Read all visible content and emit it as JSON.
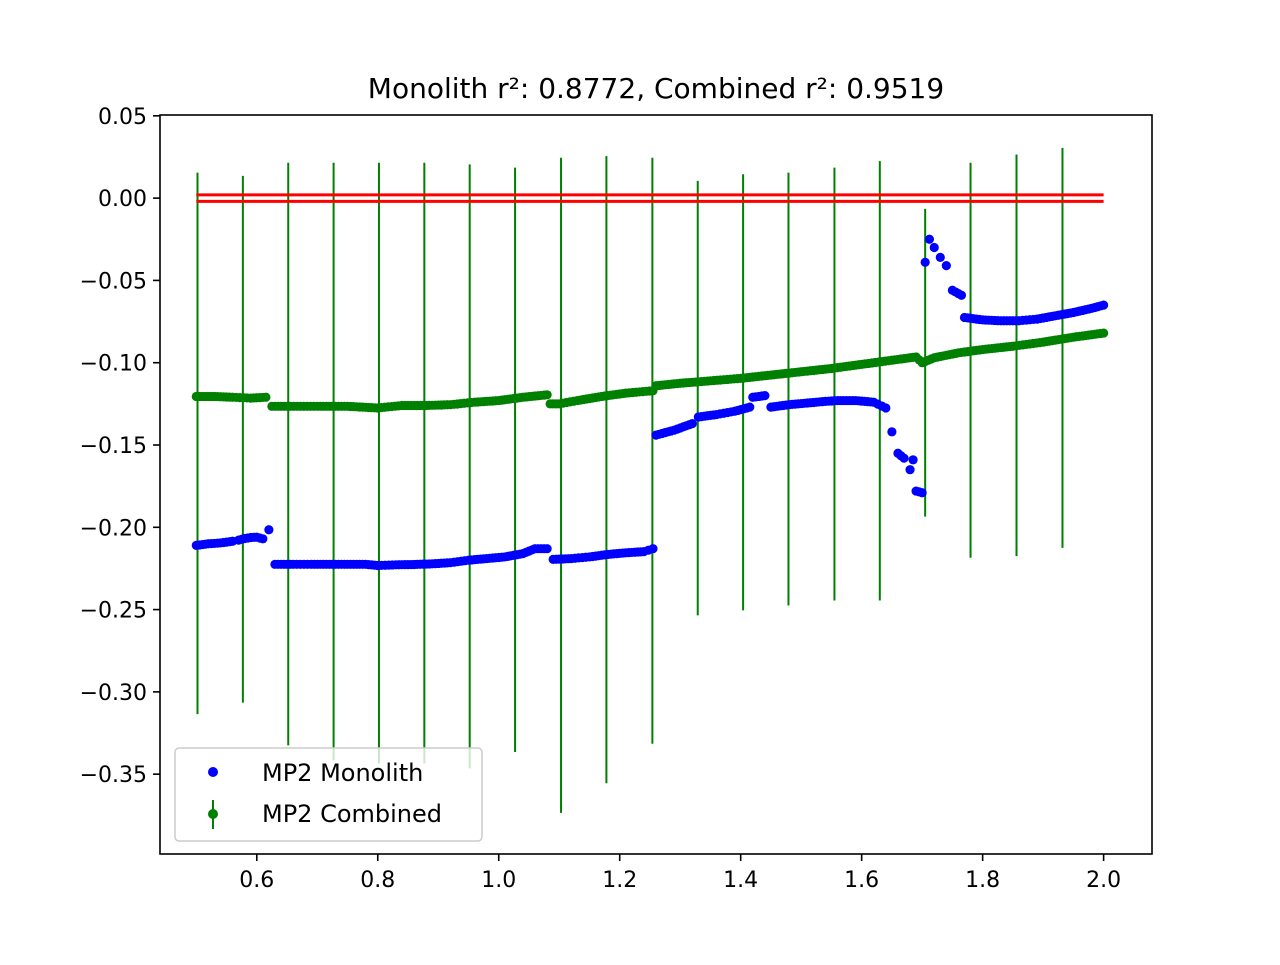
{
  "chart_data": {
    "type": "scatter",
    "title": "Monolith r²: 0.8772, Combined r²: 0.9519",
    "xlabel": "",
    "ylabel": "",
    "xlim": [
      0.44,
      2.08
    ],
    "ylim": [
      -0.3985,
      0.0505
    ],
    "x_ticks": [
      0.6,
      0.8,
      1.0,
      1.2,
      1.4,
      1.6,
      1.8,
      2.0
    ],
    "x_tick_labels": [
      "0.6",
      "0.8",
      "1.0",
      "1.2",
      "1.4",
      "1.6",
      "1.8",
      "2.0"
    ],
    "y_ticks": [
      0.05,
      0.0,
      -0.05,
      -0.1,
      -0.15,
      -0.2,
      -0.25,
      -0.3,
      -0.35
    ],
    "y_tick_labels": [
      "0.05",
      "0.00",
      "−0.05",
      "−0.10",
      "−0.15",
      "−0.20",
      "−0.25",
      "−0.30",
      "−0.35"
    ],
    "grid": false,
    "legend_position": "lower-left",
    "colors": {
      "monolith": "#0000ff",
      "combined": "#008000",
      "reference": "#ff0000"
    },
    "series": [
      {
        "name": "MP2 Monolith",
        "kind": "markers",
        "color": "#0000ff",
        "points": [
          [
            0.5,
            -0.211
          ],
          [
            0.51,
            -0.2105
          ],
          [
            0.52,
            -0.21
          ],
          [
            0.53,
            -0.2098
          ],
          [
            0.54,
            -0.2095
          ],
          [
            0.55,
            -0.209
          ],
          [
            0.56,
            -0.2085
          ],
          [
            0.57,
            -0.2078
          ],
          [
            0.58,
            -0.2068
          ],
          [
            0.59,
            -0.2062
          ],
          [
            0.6,
            -0.206
          ],
          [
            0.61,
            -0.207
          ],
          [
            0.62,
            -0.2015
          ],
          [
            0.63,
            -0.2225
          ],
          [
            0.66,
            -0.2225
          ],
          [
            0.69,
            -0.2225
          ],
          [
            0.72,
            -0.2225
          ],
          [
            0.75,
            -0.2225
          ],
          [
            0.78,
            -0.2225
          ],
          [
            0.8,
            -0.2232
          ],
          [
            0.83,
            -0.2228
          ],
          [
            0.86,
            -0.2226
          ],
          [
            0.89,
            -0.2222
          ],
          [
            0.92,
            -0.2215
          ],
          [
            0.95,
            -0.22
          ],
          [
            0.98,
            -0.219
          ],
          [
            1.01,
            -0.218
          ],
          [
            1.04,
            -0.216
          ],
          [
            1.06,
            -0.213
          ],
          [
            1.08,
            -0.213
          ],
          [
            1.09,
            -0.2195
          ],
          [
            1.12,
            -0.219
          ],
          [
            1.15,
            -0.218
          ],
          [
            1.18,
            -0.2165
          ],
          [
            1.21,
            -0.2155
          ],
          [
            1.24,
            -0.2148
          ],
          [
            1.255,
            -0.213
          ],
          [
            1.26,
            -0.144
          ],
          [
            1.29,
            -0.141
          ],
          [
            1.32,
            -0.137
          ],
          [
            1.33,
            -0.133
          ],
          [
            1.36,
            -0.1315
          ],
          [
            1.39,
            -0.1295
          ],
          [
            1.415,
            -0.127
          ],
          [
            1.42,
            -0.121
          ],
          [
            1.44,
            -0.12
          ],
          [
            1.45,
            -0.127
          ],
          [
            1.48,
            -0.1255
          ],
          [
            1.51,
            -0.1245
          ],
          [
            1.54,
            -0.1235
          ],
          [
            1.56,
            -0.123
          ],
          [
            1.59,
            -0.123
          ],
          [
            1.62,
            -0.124
          ],
          [
            1.64,
            -0.1275
          ],
          [
            1.65,
            -0.142
          ],
          [
            1.66,
            -0.155
          ],
          [
            1.67,
            -0.158
          ],
          [
            1.68,
            -0.165
          ],
          [
            1.685,
            -0.159
          ],
          [
            1.69,
            -0.178
          ],
          [
            1.7,
            -0.179
          ],
          [
            1.705,
            -0.039
          ],
          [
            1.712,
            -0.025
          ],
          [
            1.72,
            -0.03
          ],
          [
            1.73,
            -0.036
          ],
          [
            1.74,
            -0.041
          ],
          [
            1.75,
            -0.056
          ],
          [
            1.76,
            -0.058
          ],
          [
            1.765,
            -0.059
          ],
          [
            1.77,
            -0.0725
          ],
          [
            1.8,
            -0.074
          ],
          [
            1.83,
            -0.0745
          ],
          [
            1.86,
            -0.0745
          ],
          [
            1.89,
            -0.0735
          ],
          [
            1.92,
            -0.0715
          ],
          [
            1.95,
            -0.0695
          ],
          [
            1.98,
            -0.067
          ],
          [
            2.0,
            -0.065
          ]
        ]
      },
      {
        "name": "MP2 Combined",
        "kind": "markers-with-error-bars",
        "color": "#008000",
        "points": [
          [
            0.5,
            -0.1205
          ],
          [
            0.53,
            -0.1205
          ],
          [
            0.56,
            -0.121
          ],
          [
            0.59,
            -0.1215
          ],
          [
            0.615,
            -0.121
          ],
          [
            0.625,
            -0.1265
          ],
          [
            0.65,
            -0.1265
          ],
          [
            0.7,
            -0.1265
          ],
          [
            0.75,
            -0.1265
          ],
          [
            0.8,
            -0.1275
          ],
          [
            0.84,
            -0.126
          ],
          [
            0.88,
            -0.126
          ],
          [
            0.92,
            -0.1255
          ],
          [
            0.96,
            -0.124
          ],
          [
            1.0,
            -0.123
          ],
          [
            1.04,
            -0.121
          ],
          [
            1.08,
            -0.1195
          ],
          [
            1.085,
            -0.125
          ],
          [
            1.1,
            -0.125
          ],
          [
            1.13,
            -0.123
          ],
          [
            1.17,
            -0.1205
          ],
          [
            1.21,
            -0.1185
          ],
          [
            1.255,
            -0.117
          ],
          [
            1.26,
            -0.114
          ],
          [
            1.3,
            -0.1125
          ],
          [
            1.35,
            -0.111
          ],
          [
            1.4,
            -0.1095
          ],
          [
            1.45,
            -0.1075
          ],
          [
            1.5,
            -0.1055
          ],
          [
            1.55,
            -0.1035
          ],
          [
            1.6,
            -0.101
          ],
          [
            1.65,
            -0.0985
          ],
          [
            1.69,
            -0.0965
          ],
          [
            1.7,
            -0.1
          ],
          [
            1.72,
            -0.097
          ],
          [
            1.76,
            -0.094
          ],
          [
            1.8,
            -0.092
          ],
          [
            1.85,
            -0.09
          ],
          [
            1.9,
            -0.0875
          ],
          [
            1.95,
            -0.0845
          ],
          [
            2.0,
            -0.082
          ]
        ],
        "error_bars": [
          [
            0.502,
            0.0155,
            -0.3135
          ],
          [
            0.577,
            0.0135,
            -0.3065
          ],
          [
            0.652,
            0.0215,
            -0.3325
          ],
          [
            0.727,
            0.0215,
            -0.3415
          ],
          [
            0.802,
            0.0215,
            -0.3435
          ],
          [
            0.877,
            0.0215,
            -0.3435
          ],
          [
            0.952,
            0.0205,
            -0.3465
          ],
          [
            1.027,
            0.0185,
            -0.3365
          ],
          [
            1.103,
            0.0245,
            -0.3735
          ],
          [
            1.178,
            0.0255,
            -0.3555
          ],
          [
            1.254,
            0.0245,
            -0.3315
          ],
          [
            1.329,
            0.0105,
            -0.2535
          ],
          [
            1.404,
            0.0145,
            -0.2505
          ],
          [
            1.479,
            0.0155,
            -0.2475
          ],
          [
            1.555,
            0.0185,
            -0.2445
          ],
          [
            1.63,
            0.0225,
            -0.2445
          ],
          [
            1.705,
            -0.0065,
            -0.1935
          ],
          [
            1.78,
            0.0215,
            -0.2185
          ],
          [
            1.856,
            0.0265,
            -0.2175
          ],
          [
            1.932,
            0.0305,
            -0.2125
          ]
        ]
      },
      {
        "name": "",
        "kind": "reference-lines",
        "color": "#ff0000",
        "lines": [
          {
            "x": [
              0.5,
              2.0
            ],
            "y": [
              0.002,
              0.002
            ]
          },
          {
            "x": [
              0.5,
              2.0
            ],
            "y": [
              -0.002,
              -0.002
            ]
          }
        ]
      }
    ]
  },
  "legend": {
    "items": [
      {
        "label": "MP2 Monolith"
      },
      {
        "label": "MP2 Combined"
      }
    ]
  }
}
